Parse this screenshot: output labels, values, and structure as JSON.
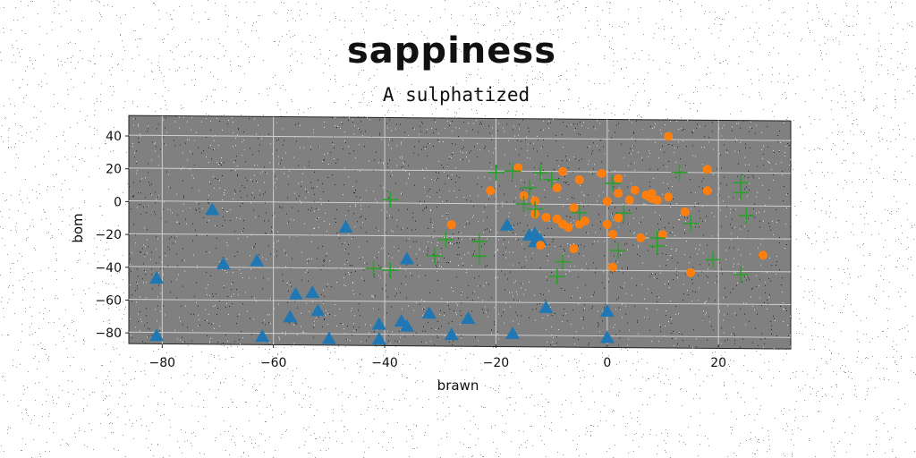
{
  "chart_data": {
    "type": "scatter",
    "title": "sappiness",
    "subtitle": "A sulphatized",
    "xlabel": "brawn",
    "ylabel": "bom",
    "xlim": [
      -86,
      33
    ],
    "ylim": [
      -87,
      52
    ],
    "xticks": [
      -80,
      -60,
      -40,
      -20,
      0,
      20
    ],
    "yticks": [
      40,
      20,
      0,
      -20,
      -40,
      -60,
      -80
    ],
    "grid": true,
    "legend": "none",
    "background_color": "#808080",
    "series": [
      {
        "marker": "triangle",
        "color": "#1f77b4",
        "points": [
          [
            -71,
            -5
          ],
          [
            -81,
            -47
          ],
          [
            -81,
            -82
          ],
          [
            -69,
            -38
          ],
          [
            -63,
            -36
          ],
          [
            -62,
            -82
          ],
          [
            -56,
            -56
          ],
          [
            -57,
            -70
          ],
          [
            -53,
            -55
          ],
          [
            -52,
            -66
          ],
          [
            -50,
            -83
          ],
          [
            -47,
            -15
          ],
          [
            -41,
            -74
          ],
          [
            -41,
            -83
          ],
          [
            -37,
            -72
          ],
          [
            -36,
            -75
          ],
          [
            -36,
            -34
          ],
          [
            -32,
            -67
          ],
          [
            -28,
            -80
          ],
          [
            -25,
            -70
          ],
          [
            -18,
            -13
          ],
          [
            -17,
            -79
          ],
          [
            -13,
            -18
          ],
          [
            -13,
            -23
          ],
          [
            -11,
            -63
          ],
          [
            0,
            -65
          ],
          [
            0,
            -81
          ],
          [
            -12,
            -22
          ],
          [
            -14,
            -19
          ]
        ]
      },
      {
        "marker": "circle",
        "color": "#ff7f0e",
        "points": [
          [
            11,
            42
          ],
          [
            18,
            22
          ],
          [
            -16,
            22
          ],
          [
            -21,
            8
          ],
          [
            -15,
            5
          ],
          [
            -13,
            2
          ],
          [
            -9,
            10
          ],
          [
            -8,
            20
          ],
          [
            -5,
            15
          ],
          [
            -1,
            19
          ],
          [
            2,
            16
          ],
          [
            2,
            7
          ],
          [
            -6,
            -2
          ],
          [
            -13,
            -6
          ],
          [
            -11,
            -8
          ],
          [
            -9,
            -9
          ],
          [
            -8,
            -12
          ],
          [
            -7,
            -14
          ],
          [
            -5,
            -12
          ],
          [
            -4,
            -10
          ],
          [
            0,
            2
          ],
          [
            4,
            3
          ],
          [
            5,
            9
          ],
          [
            7,
            6
          ],
          [
            8,
            4
          ],
          [
            9,
            3
          ],
          [
            11,
            5
          ],
          [
            14,
            -4
          ],
          [
            10,
            -18
          ],
          [
            -28,
            -13
          ],
          [
            -12,
            -25
          ],
          [
            -6,
            -27
          ],
          [
            0,
            -12
          ],
          [
            1,
            -18
          ],
          [
            2,
            -8
          ],
          [
            1,
            -38
          ],
          [
            6,
            -20
          ],
          [
            15,
            -41
          ],
          [
            18,
            9
          ],
          [
            28,
            -30
          ],
          [
            8,
            7
          ]
        ]
      },
      {
        "marker": "plus",
        "color": "#2ca02c",
        "points": [
          [
            -39,
            2
          ],
          [
            -42,
            -40
          ],
          [
            -39,
            -41
          ],
          [
            -29,
            -22
          ],
          [
            -31,
            -32
          ],
          [
            -23,
            -23
          ],
          [
            -23,
            -32
          ],
          [
            -20,
            19
          ],
          [
            -17,
            20
          ],
          [
            -14,
            10
          ],
          [
            -12,
            19
          ],
          [
            -15,
            0
          ],
          [
            -10,
            15
          ],
          [
            -13,
            -3
          ],
          [
            -8,
            -35
          ],
          [
            -9,
            -44
          ],
          [
            -5,
            -5
          ],
          [
            1,
            13
          ],
          [
            3,
            -5
          ],
          [
            2,
            -28
          ],
          [
            9,
            -20
          ],
          [
            9,
            -25
          ],
          [
            13,
            20
          ],
          [
            15,
            -11
          ],
          [
            19,
            -33
          ],
          [
            24,
            14
          ],
          [
            24,
            8
          ],
          [
            24,
            -42
          ],
          [
            25,
            -6
          ]
        ]
      }
    ]
  }
}
